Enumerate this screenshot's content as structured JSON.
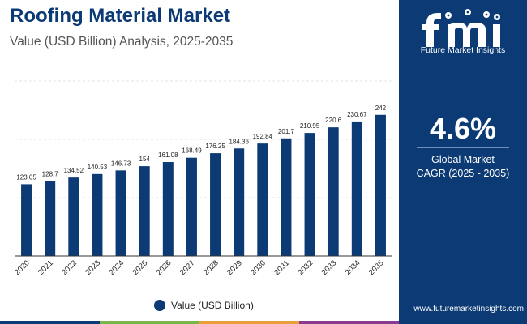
{
  "header": {
    "title": "Roofing Material Market",
    "subtitle": "Value (USD Billion) Analysis, 2025-2035"
  },
  "chart_data": {
    "type": "bar",
    "categories": [
      "2020",
      "2021",
      "2022",
      "2023",
      "2024",
      "2025",
      "2026",
      "2027",
      "2028",
      "2029",
      "2030",
      "2031",
      "2032",
      "2033",
      "2034",
      "2035"
    ],
    "series": [
      {
        "name": "Value (USD Billion)",
        "values": [
          123.05,
          128.7,
          134.52,
          140.53,
          146.73,
          154,
          161.08,
          168.49,
          176.25,
          184.36,
          192.84,
          201.7,
          210.95,
          220.6,
          230.67,
          242
        ]
      }
    ],
    "value_labels": [
      "123.05",
      "128.7",
      "134.52",
      "140.53",
      "146.73",
      "154",
      "161.08",
      "168.49",
      "176.25",
      "184.36",
      "192.84",
      "201.7",
      "210.95",
      "220.6",
      "230.67",
      "242"
    ],
    "title": "Roofing Material Market",
    "xlabel": "",
    "ylabel": "",
    "ylim": [
      0,
      300
    ],
    "grid": true,
    "legend": "bottom-center"
  },
  "legend": {
    "label": "Value (USD Billion)"
  },
  "sidebar": {
    "logo_text": "Future Market Insights",
    "cagr_value": "4.6%",
    "cagr_label_1": "Global Market",
    "cagr_label_2": "CAGR (2025 - 2035)",
    "website": "www.futuremarketinsights.com"
  },
  "colors": {
    "bar": "#0b3a75",
    "title": "#0b3a75",
    "sidebar_bg": "#0b3a75",
    "stripe": [
      "#0b3a75",
      "#7ab648",
      "#e9a03b",
      "#8a3b8f"
    ]
  }
}
